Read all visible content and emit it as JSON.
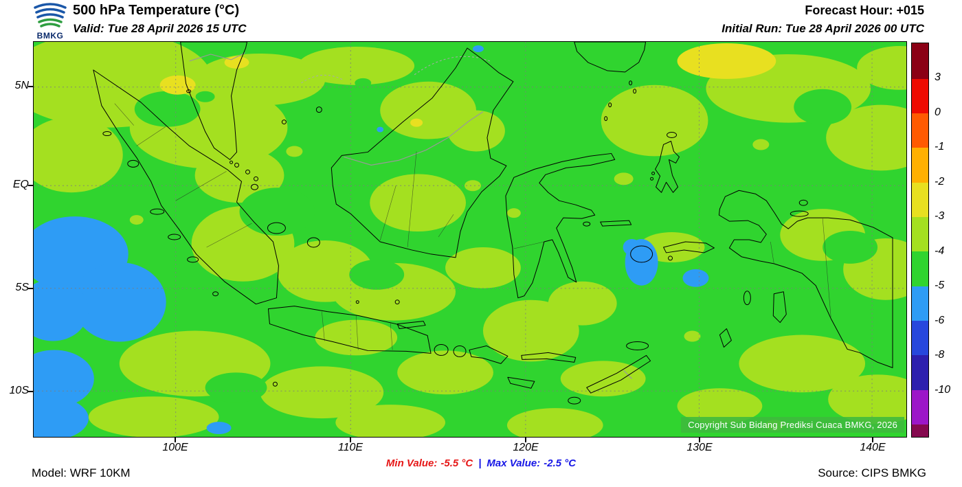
{
  "header": {
    "logo_text": "BMKG",
    "title": "500 hPa Temperature (°C)",
    "valid": "Valid: Tue 28 April 2026 15 UTC",
    "forecast_hour": "Forecast Hour: +015",
    "initial_run": "Initial Run: Tue 28 April 2026 00 UTC"
  },
  "map": {
    "copyright": "Copyright Sub Bidang Prediksi Cuaca BMKG, 2026",
    "lat_labels": [
      "5N",
      "EQ",
      "5S",
      "10S"
    ],
    "lon_labels": [
      "100E",
      "110E",
      "120E",
      "130E",
      "140E"
    ]
  },
  "palette": {
    "green": "#30d42f",
    "yellow_green": "#a4e020",
    "yellow": "#e8e020",
    "blue": "#2e9cf5"
  },
  "colorbar": {
    "tick_labels": [
      "3",
      "0",
      "-1",
      "-2",
      "-3",
      "-4",
      "-5",
      "-6",
      "-8",
      "-10"
    ],
    "colors": [
      "#8b0015",
      "#ee0a00",
      "#ff5a00",
      "#ffb000",
      "#e8e020",
      "#a4e020",
      "#30d42f",
      "#2e9cf5",
      "#2747dd",
      "#2d1fae",
      "#9c16c8",
      "#85094f"
    ]
  },
  "footer": {
    "model": "Model: WRF 10KM",
    "min_label": "Min Value:",
    "min_value": "-5.5 °C",
    "divider": "|",
    "max_label": "Max Value:",
    "max_value": "-2.5 °C",
    "source": "Source: CIPS BMKG"
  },
  "chart_data": {
    "type": "heatmap",
    "title": "500 hPa Temperature (°C)",
    "valid_time": "Tue 28 April 2026 15 UTC",
    "initial_run": "Tue 28 April 2026 00 UTC",
    "forecast_hour": "+015",
    "model": "WRF 10KM",
    "source": "CIPS BMKG",
    "min_value_c": -5.5,
    "max_value_c": -2.5,
    "colorbar_levels_c": [
      3,
      0,
      -1,
      -2,
      -3,
      -4,
      -5,
      -6,
      -8,
      -10
    ],
    "x_axis_ticks": [
      "100E",
      "110E",
      "120E",
      "130E",
      "140E"
    ],
    "y_axis_ticks": [
      "5N",
      "EQ",
      "5S",
      "10S"
    ],
    "region": "Indonesia",
    "field_summary": "Mostly -4 to -5 °C (green) with widespread -3 to -4 °C (yellow-green) patches, small -2 to -3 °C (yellow) spots in the far north, and -5 to -6 °C (blue) pockets southwest of Sumatra and near Sulawesi/Maluku"
  }
}
